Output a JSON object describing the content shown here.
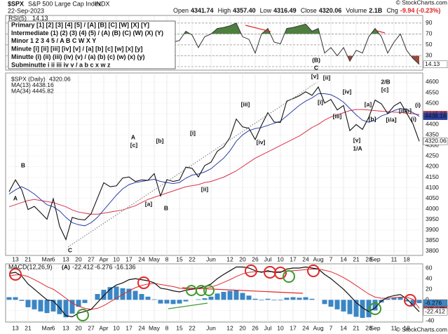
{
  "header": {
    "symbol": "$SPX",
    "name": "S&P 500 Large Cap Index",
    "exchange": "INDX",
    "date": "22-Sep-2023",
    "stats": [
      {
        "label": "Open",
        "value": "4341.74"
      },
      {
        "label": "High",
        "value": "4357.40"
      },
      {
        "label": "Low",
        "value": "4316.49"
      },
      {
        "label": "Close",
        "value": "4320.06"
      },
      {
        "label": "Volume",
        "value": "2.1B"
      },
      {
        "label": "Chg",
        "value": "-9.94 (-0.23%)"
      }
    ]
  },
  "watermark": "© StockCharts.com",
  "wave_legend": [
    {
      "text": "Primary [1] [2] [3] [4] [5] / [A] [B] [C] [W] [X] [Y]",
      "color": "#1d5e20"
    },
    {
      "text": "Intermediate (1) (2) (3) (4) (5) / (A) (B) (C) (W) (X) (Y)",
      "color": "#6f2a86"
    },
    {
      "text": "Minor 1 2 3 4 5 / A B C W X Y",
      "color": "#1b2f7a"
    },
    {
      "text": "Minute [i] [ii] [iii] [iv] [v] / [a] [b] [c] [w] [x] [y]",
      "color": "#3f9a2e"
    },
    {
      "text": "Minutte (i) (ii) (iii) (iv) (v) / (a) (b) (c) (w) (x) (y)",
      "color": "#e6a01c"
    },
    {
      "text": "Subminutte i ii iii iv v / a b c x w z",
      "color": "#8a8a8a"
    }
  ],
  "chart_data": [
    {
      "type": "line",
      "title": "RSI(5)",
      "color": "#333333",
      "band_colors": [
        "#4f7f3f",
        "#9a4a3a"
      ],
      "values": [
        60,
        70,
        45,
        25,
        35,
        28,
        30,
        55,
        22,
        15,
        45,
        40,
        42,
        48,
        65,
        75,
        60,
        62,
        68,
        70,
        55,
        58,
        57,
        65,
        35,
        60,
        55,
        58,
        75,
        68,
        45,
        65,
        70,
        80,
        82,
        85,
        90,
        65,
        60,
        35,
        70,
        80,
        55,
        52,
        80,
        82,
        85,
        88,
        75,
        80,
        35,
        45,
        30,
        45,
        20,
        40,
        35,
        65,
        80,
        65,
        35,
        55,
        70,
        40,
        25,
        14.13
      ],
      "ylim": [
        3.5,
        104
      ],
      "yticks": [
        10,
        30,
        50,
        70,
        90
      ],
      "grid": true
    },
    {
      "type": "line",
      "title": "$SPX (Daily)",
      "categories": [
        null,
        "13",
        null,
        "21",
        null,
        null,
        "Mar",
        "6",
        null,
        "13",
        null,
        "20",
        null,
        "27",
        null,
        "Apr",
        null,
        "10",
        null,
        "17",
        null,
        "24",
        null,
        "May",
        null,
        "8",
        null,
        "15",
        null,
        "22",
        null,
        null,
        "Jun",
        null,
        null,
        "12",
        null,
        "20",
        null,
        "26",
        null,
        "Jul",
        null,
        "10",
        null,
        "17",
        null,
        "24",
        null,
        "Aug",
        null,
        "7",
        null,
        "14",
        null,
        "21",
        null,
        "28",
        "Sep",
        null,
        null,
        "11",
        null,
        "18",
        null,
        null
      ],
      "series": [
        {
          "name": "MA(34)",
          "color": "#d8344a",
          "values": [
            4010,
            4020,
            4030,
            4040,
            4045,
            4040,
            4035,
            4030,
            4020,
            4010,
            3995,
            3985,
            3980,
            3975,
            3975,
            3980,
            3985,
            3990,
            3995,
            4005,
            4015,
            4030,
            4045,
            4055,
            4065,
            4075,
            4085,
            4095,
            4105,
            4110,
            4115,
            4125,
            4130,
            4140,
            4150,
            4165,
            4180,
            4200,
            4220,
            4240,
            4255,
            4270,
            4285,
            4300,
            4315,
            4330,
            4345,
            4365,
            4385,
            4400,
            4420,
            4435,
            4445,
            4455,
            4465,
            4470,
            4470,
            4468,
            4465,
            4462,
            4460,
            4458,
            4456,
            4452,
            4450,
            4445.82
          ]
        },
        {
          "name": "MA(13)",
          "color": "#2a3fa8",
          "values": [
            4070,
            4090,
            4105,
            4090,
            4070,
            4045,
            4020,
            4010,
            3990,
            3960,
            3935,
            3925,
            3920,
            3935,
            3960,
            3995,
            4030,
            4065,
            4095,
            4115,
            4125,
            4130,
            4135,
            4140,
            4130,
            4125,
            4120,
            4125,
            4145,
            4160,
            4165,
            4175,
            4190,
            4215,
            4240,
            4275,
            4320,
            4350,
            4370,
            4380,
            4385,
            4395,
            4405,
            4415,
            4440,
            4465,
            4490,
            4510,
            4525,
            4545,
            4545,
            4540,
            4525,
            4505,
            4475,
            4445,
            4420,
            4410,
            4420,
            4440,
            4450,
            4465,
            4475,
            4470,
            4455,
            4438.16
          ]
        },
        {
          "name": "$SPX (Daily)",
          "color": "#111111",
          "values": [
            4081,
            4137,
            4090,
            3997,
            4012,
            3982,
            3951,
            4048,
            3918,
            3855,
            3960,
            3951,
            3948,
            3977,
            4051,
            4124,
            4105,
            4109,
            4146,
            4151,
            4130,
            4137,
            4135,
            4167,
            4061,
            4138,
            4130,
            4136,
            4198,
            4192,
            4151,
            4205,
            4221,
            4273,
            4293,
            4338,
            4425,
            4388,
            4381,
            4328,
            4396,
            4455,
            4411,
            4409,
            4510,
            4522,
            4535,
            4554,
            4537,
            4577,
            4501,
            4518,
            4468,
            4489,
            4370,
            4399,
            4376,
            4433,
            4515,
            4497,
            4451,
            4487,
            4505,
            4453,
            4402,
            4320.06
          ]
        }
      ],
      "ylim": [
        3780,
        4643
      ],
      "yticks": [
        3800,
        3850,
        3900,
        3950,
        4000,
        4050,
        4100,
        4150,
        4200,
        4250,
        4300,
        4350,
        4400,
        4450,
        4500,
        4550,
        4600
      ],
      "grid": true,
      "annotations": [
        {
          "text": "A",
          "color": "#1b2f7a"
        },
        {
          "text": "B",
          "color": "#1b2f7a"
        },
        {
          "text": "C",
          "color": "#1b2f7a"
        },
        {
          "text": "A",
          "color": "#1b2f7a"
        },
        {
          "text": "[c]",
          "color": "#3f9a2e"
        },
        {
          "text": "[b]",
          "color": "#3f9a2e"
        },
        {
          "text": "[a]",
          "color": "#3f9a2e"
        },
        {
          "text": "B",
          "color": "#1b2f7a"
        },
        {
          "text": "[i]",
          "color": "#3f9a2e"
        },
        {
          "text": "[ii]",
          "color": "#3f9a2e"
        },
        {
          "text": "[iii]",
          "color": "#3f9a2e"
        },
        {
          "text": "[iv]",
          "color": "#3f9a2e"
        },
        {
          "text": "(B)",
          "color": "#6f2a86"
        },
        {
          "text": "C",
          "color": "#1b2f7a"
        },
        {
          "text": "[v]",
          "color": "#3f9a2e"
        },
        {
          "text": "[ii]",
          "color": "#3f9a2e"
        },
        {
          "text": "[i]",
          "color": "#3f9a2e"
        },
        {
          "text": "[iii]",
          "color": "#3f9a2e"
        },
        {
          "text": "[iv]",
          "color": "#3f9a2e"
        },
        {
          "text": "[v]",
          "color": "#3f9a2e"
        },
        {
          "text": "1/A",
          "color": "#1b2f7a"
        },
        {
          "text": "[b]",
          "color": "#3f9a2e"
        },
        {
          "text": "2/B",
          "color": "#1b2f7a"
        },
        {
          "text": "[c]",
          "color": "#3f9a2e"
        },
        {
          "text": "[a]",
          "color": "#3f9a2e"
        },
        {
          "text": "[i/a]",
          "color": "#3f9a2e"
        },
        {
          "text": "[ii/b]",
          "color": "#3f9a2e"
        },
        {
          "text": "(i)",
          "color": "#e6a01c"
        },
        {
          "text": "(i)",
          "color": "#e6a01c"
        }
      ]
    },
    {
      "type": "macd",
      "title": "MACD(12,26,9)",
      "categories": [
        null,
        "13",
        null,
        "21",
        null,
        null,
        "Mar",
        "6",
        null,
        "13",
        null,
        "20",
        null,
        "27",
        null,
        "Apr",
        null,
        "10",
        null,
        "17",
        null,
        "24",
        null,
        "May",
        null,
        "8",
        null,
        "15",
        null,
        "22",
        null,
        null,
        "Jun",
        null,
        null,
        "12",
        null,
        "20",
        null,
        "26",
        null,
        "Jul",
        null,
        "10",
        null,
        "17",
        null,
        "24",
        null,
        "Aug",
        null,
        "7",
        null,
        "14",
        null,
        "21",
        null,
        "28",
        "Sep",
        null,
        null,
        "11",
        null,
        "18",
        null,
        null
      ],
      "histogram": {
        "color": "#3b86c4",
        "values": [
          5,
          5,
          -2,
          -14,
          -18,
          -22,
          -25,
          -22,
          -27,
          -33,
          -26,
          -13,
          -6,
          0,
          11,
          19,
          24,
          25,
          22,
          21,
          17,
          11,
          6,
          1,
          -7,
          -7,
          -8,
          -7,
          -3,
          0,
          1,
          3,
          6,
          12,
          15,
          17,
          18,
          13,
          8,
          2,
          -1,
          2,
          -1,
          -1,
          4,
          5,
          4,
          5,
          2,
          0,
          -8,
          -13,
          -18,
          -22,
          -27,
          -32,
          -34,
          -33,
          -20,
          -5,
          2,
          4,
          5,
          -3,
          -11,
          -6.276
        ]
      },
      "signal": {
        "color": "#e0282a",
        "values": [
          45,
          47,
          47,
          44,
          38,
          32,
          25,
          20,
          12,
          3,
          -6,
          -12,
          -16,
          -18,
          -16,
          -11,
          -4,
          3,
          10,
          17,
          23,
          27,
          30,
          31,
          29,
          27,
          25,
          22,
          21,
          20,
          21,
          22,
          24,
          28,
          33,
          38,
          44,
          49,
          52,
          53,
          53,
          53,
          53,
          53,
          54,
          55,
          56,
          57,
          58,
          58,
          56,
          53,
          48,
          42,
          35,
          27,
          19,
          11,
          5,
          3,
          3,
          4,
          5,
          5,
          1,
          -16.136
        ]
      },
      "macd": {
        "color": "#111111",
        "values": [
          50,
          52,
          45,
          30,
          20,
          10,
          0,
          -2,
          -15,
          -30,
          -32,
          -25,
          -22,
          -18,
          -5,
          8,
          20,
          28,
          32,
          38,
          40,
          38,
          36,
          32,
          22,
          20,
          17,
          15,
          18,
          20,
          22,
          25,
          30,
          40,
          48,
          55,
          62,
          62,
          60,
          55,
          52,
          55,
          52,
          52,
          58,
          60,
          60,
          62,
          60,
          58,
          48,
          40,
          30,
          20,
          8,
          -5,
          -15,
          -22,
          -15,
          -2,
          5,
          8,
          10,
          2,
          -10,
          -22.412
        ]
      },
      "ylim": [
        -42,
        68
      ],
      "yticks": [
        -40,
        -20,
        0,
        20,
        40,
        60
      ],
      "grid": true,
      "annotations": [
        {
          "text": "(A)",
          "color": "#6f2a86"
        }
      ]
    }
  ]
}
